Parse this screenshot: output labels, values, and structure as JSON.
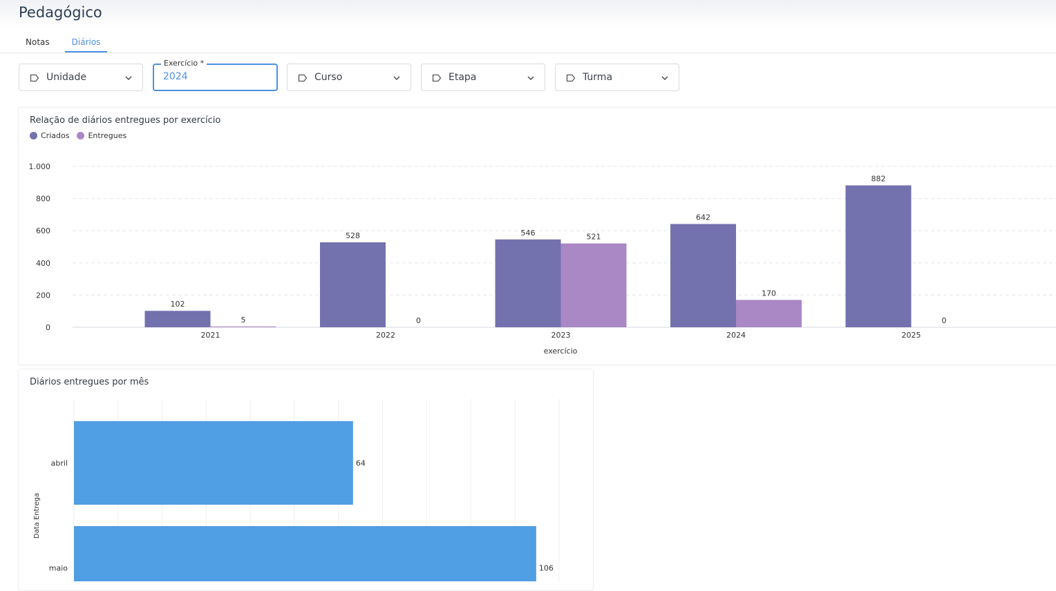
{
  "page": {
    "title": "Pedagógico"
  },
  "tabs": [
    {
      "label": "Notas",
      "active": false
    },
    {
      "label": "Diários",
      "active": true
    }
  ],
  "filters": {
    "unidade": {
      "label": "Unidade",
      "icon": "tag-icon"
    },
    "exercicio": {
      "legend": "Exercício *",
      "value": "2024"
    },
    "curso": {
      "label": "Curso",
      "icon": "tag-icon"
    },
    "etapa": {
      "label": "Etapa",
      "icon": "tag-icon"
    },
    "turma": {
      "label": "Turma",
      "icon": "tag-icon"
    }
  },
  "colors": {
    "criados": "#7371ae",
    "entregues": "#a988c5",
    "monthly_bar": "#509ee3",
    "accent": "#4a90e2"
  },
  "chart_data": [
    {
      "type": "bar",
      "title": "Relação de diários entregues por exercício",
      "xlabel": "exercício",
      "ylabel": "",
      "categories": [
        "2021",
        "2022",
        "2023",
        "2024",
        "2025"
      ],
      "series": [
        {
          "name": "Criados",
          "values": [
            102,
            528,
            546,
            642,
            882
          ]
        },
        {
          "name": "Entregues",
          "values": [
            5,
            0,
            521,
            170,
            0
          ]
        }
      ],
      "ylim": [
        0,
        1000
      ],
      "yticks": [
        0,
        200,
        400,
        600,
        800,
        1000
      ],
      "ytick_labels": [
        "0",
        "200",
        "400",
        "600",
        "800",
        "1.000"
      ],
      "legend": "top-left",
      "grid": true
    },
    {
      "type": "bar",
      "orientation": "horizontal",
      "title": "Diários entregues por mês",
      "ylabel": "Data Entrega",
      "xlabel": "",
      "categories": [
        "abril",
        "maio"
      ],
      "values": [
        64,
        106
      ],
      "xlim": [
        0,
        110
      ],
      "grid": true
    }
  ]
}
